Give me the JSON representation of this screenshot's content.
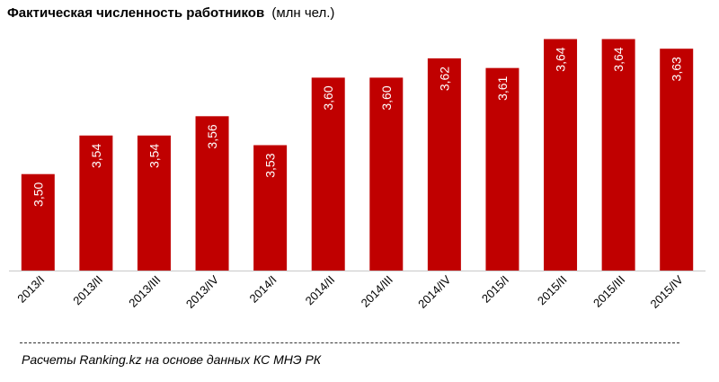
{
  "chart_data": {
    "type": "bar",
    "title": "Фактическая численность работников",
    "unit": "(млн чел.)",
    "categories": [
      "2013/I",
      "2013/II",
      "2013/III",
      "2013/IV",
      "2014/I",
      "2014/II",
      "2014/III",
      "2014/IV",
      "2015/I",
      "2015/II",
      "2015/III",
      "2015/IV"
    ],
    "values": [
      3.5,
      3.54,
      3.54,
      3.56,
      3.53,
      3.6,
      3.6,
      3.62,
      3.61,
      3.64,
      3.64,
      3.63
    ],
    "value_labels": [
      "3,50",
      "3,54",
      "3,54",
      "3,56",
      "3,53",
      "3,60",
      "3,60",
      "3,62",
      "3,61",
      "3,64",
      "3,64",
      "3,63"
    ],
    "ylim": [
      3.4,
      3.66
    ],
    "bar_color": "#c00000",
    "grid": false,
    "legend": "none"
  },
  "footer": {
    "source": "Расчеты Ranking.kz на основе данных КС МНЭ РК"
  }
}
